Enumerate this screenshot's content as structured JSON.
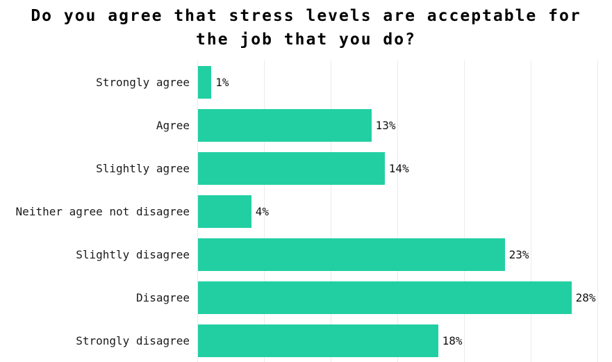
{
  "title_lines": [
    "Do you agree that stress levels are acceptable for",
    "the job that you do?"
  ],
  "chart_data": {
    "type": "bar",
    "orientation": "horizontal",
    "title": "Do you agree that stress levels are acceptable for the job that you do?",
    "categories": [
      "Strongly agree",
      "Agree",
      "Slightly agree",
      "Neither agree not disagree",
      "Slightly disagree",
      "Disagree",
      "Strongly disagree"
    ],
    "values": [
      1,
      13,
      14,
      4,
      23,
      28,
      18
    ],
    "value_labels": [
      "1%",
      "13%",
      "14%",
      "4%",
      "23%",
      "28%",
      "18%"
    ],
    "xlabel": "",
    "ylabel": "",
    "xlim": [
      0,
      30
    ],
    "grid_step": 5,
    "grid": "vertical-only",
    "legend": "none",
    "bar_color": "#22CFA2",
    "gridline_color": "#ebebeb",
    "label_color": "#1a1a1a",
    "title_color": "#000000"
  }
}
